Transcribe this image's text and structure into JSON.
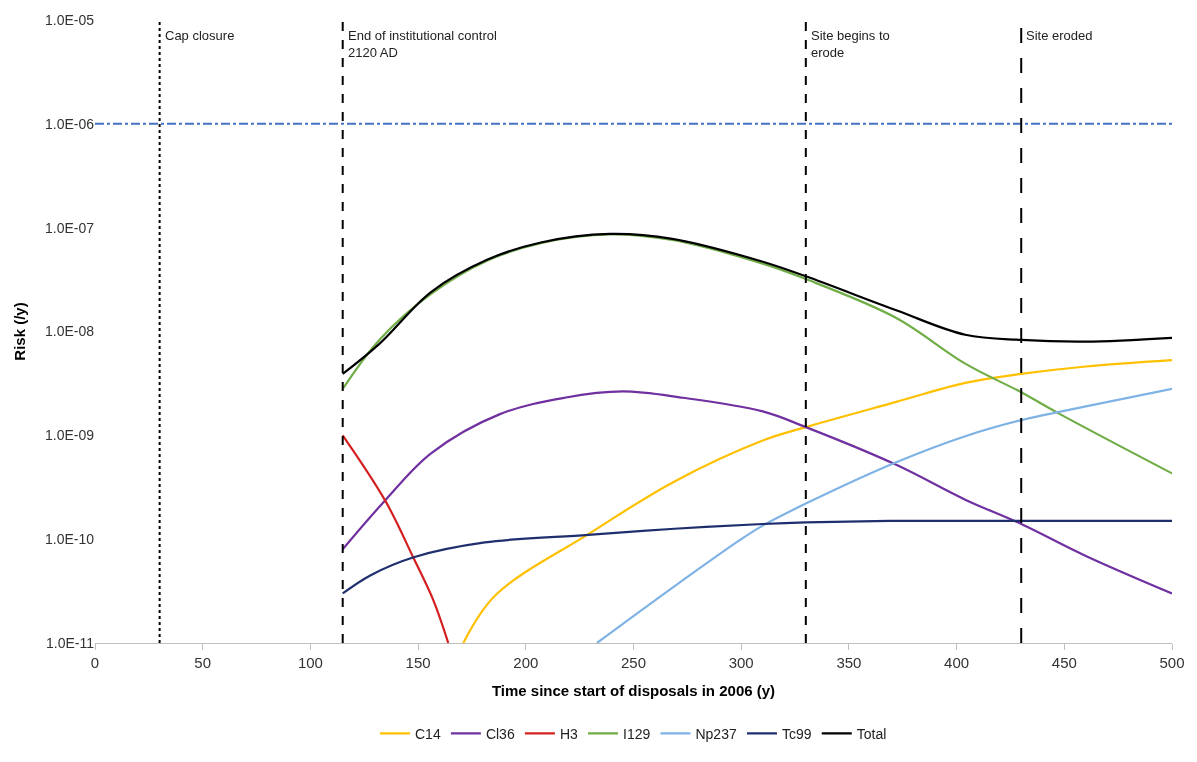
{
  "chart_data": {
    "type": "line",
    "xlabel": "Time since start of disposals in 2006 (y)",
    "ylabel": "Risk (/y)",
    "log": "y",
    "legend": "bottom",
    "line_style": "solid",
    "marker": "none",
    "xlim": [
      0,
      500
    ],
    "xticks": [
      0,
      50,
      100,
      150,
      200,
      250,
      300,
      350,
      400,
      450,
      500
    ],
    "ylim": [
      1e-11,
      1e-05
    ],
    "yticks": [
      {
        "value": 1e-11,
        "label": "1.0E-11"
      },
      {
        "value": 1e-10,
        "label": "1.0E-10"
      },
      {
        "value": 1e-09,
        "label": "1.0E-09"
      },
      {
        "value": 1e-08,
        "label": "1.0E-08"
      },
      {
        "value": 1e-07,
        "label": "1.0E-07"
      },
      {
        "value": 1e-06,
        "label": "1.0E-06"
      },
      {
        "value": 1e-05,
        "label": "1.0E-05"
      }
    ],
    "series": [
      {
        "name": "C14",
        "color": "#ffc000",
        "x": [
          171,
          186,
          230,
          268,
          310,
          330,
          372,
          404,
          430,
          460,
          500
        ],
        "values": [
          1e-11,
          2.9e-11,
          1.15e-10,
          3.5e-10,
          8.9e-10,
          1.2e-09,
          2.1e-09,
          3.2e-09,
          3.9e-09,
          4.6e-09,
          5.3e-09
        ]
      },
      {
        "name": "Cl36",
        "color": "#7030a0",
        "x": [
          115,
          135,
          156,
          188,
          218,
          245,
          273,
          310,
          330,
          372,
          404,
          430,
          460,
          500
        ],
        "values": [
          8e-11,
          2.4e-10,
          6.7e-10,
          1.6e-09,
          2.3e-09,
          2.65e-09,
          2.3e-09,
          1.7e-09,
          1.2e-09,
          5.2e-10,
          2.4e-10,
          1.4e-10,
          6.9e-11,
          3e-11
        ]
      },
      {
        "name": "H3",
        "color": "#d42020",
        "x": [
          115,
          135,
          148,
          157,
          164
        ],
        "values": [
          1e-09,
          2.3e-10,
          6.5e-11,
          2.6e-11,
          1e-11
        ]
      },
      {
        "name": "I129",
        "color": "#70ad47",
        "x": [
          115,
          132,
          156,
          182,
          207,
          239,
          268,
          310,
          330,
          372,
          404,
          430,
          448,
          500
        ],
        "values": [
          2.8e-09,
          8.3e-09,
          2.3e-08,
          4.8e-08,
          7.1e-08,
          8.6e-08,
          7.6e-08,
          4.5e-08,
          3.2e-08,
          1.35e-08,
          4.9e-09,
          2.6e-09,
          1.6e-09,
          4.3e-10
        ]
      },
      {
        "name": "Np237",
        "color": "#7fb2e5",
        "x": [
          233,
          268,
          300,
          310,
          330,
          372,
          404,
          430,
          460,
          500
        ],
        "values": [
          1e-11,
          3.4e-11,
          1e-10,
          1.35e-10,
          2.2e-10,
          5.5e-10,
          9.8e-10,
          1.4e-09,
          1.9e-09,
          2.8e-09
        ]
      },
      {
        "name": "Tc99",
        "color": "#1f2f6e",
        "x": [
          115,
          128,
          148,
          181,
          229,
          269,
          310,
          330,
          372,
          430,
          500
        ],
        "values": [
          3e-11,
          4.5e-11,
          6.7e-11,
          9.3e-11,
          1.1e-10,
          1.26e-10,
          1.4e-10,
          1.45e-10,
          1.5e-10,
          1.5e-10,
          1.5e-10
        ]
      },
      {
        "name": "Total",
        "color": "#000000",
        "x": [
          115,
          132,
          156,
          182,
          207,
          239,
          268,
          310,
          330,
          372,
          404,
          430,
          460,
          500
        ],
        "values": [
          3.9e-09,
          7.6e-09,
          2.4e-08,
          4.9e-08,
          7.2e-08,
          8.7e-08,
          7.8e-08,
          4.7e-08,
          3.4e-08,
          1.6e-08,
          9.3e-09,
          8.3e-09,
          8e-09,
          8.7e-09
        ]
      }
    ],
    "ref_lines": [
      {
        "axis": "y",
        "value": 1e-06,
        "label": null,
        "color": "#4472c4",
        "line_style": "dashdot"
      },
      {
        "axis": "x",
        "value": 30,
        "label": "Cap closure",
        "color": "#000000",
        "line_style": "dotted"
      },
      {
        "axis": "x",
        "value": 115,
        "label": "End of institutional control\n2120 AD",
        "color": "#000000",
        "line_style": "dashed"
      },
      {
        "axis": "x",
        "value": 330,
        "label": "Site begins to\nerode",
        "color": "#000000",
        "line_style": "dashed"
      },
      {
        "axis": "x",
        "value": 430,
        "label": "Site eroded",
        "color": "#000000",
        "line_style": "longdash"
      }
    ]
  }
}
